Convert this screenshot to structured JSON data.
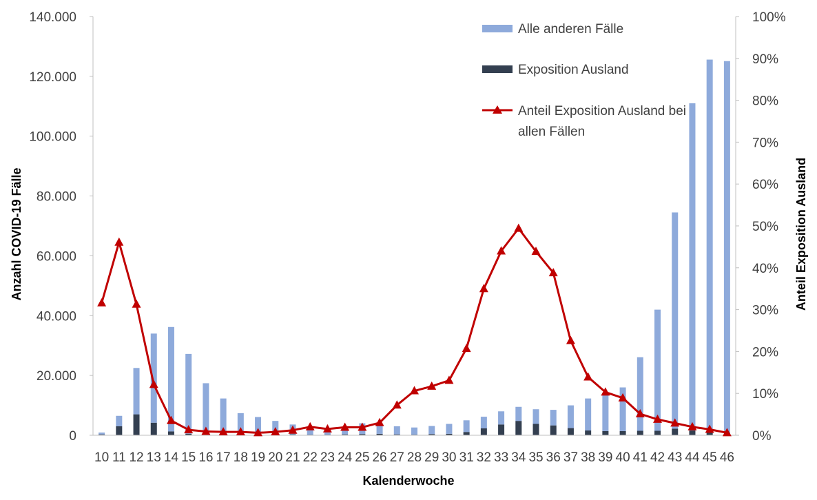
{
  "chart_data": {
    "type": "bar",
    "categories": [
      "10",
      "11",
      "12",
      "13",
      "14",
      "15",
      "16",
      "17",
      "18",
      "19",
      "20",
      "21",
      "22",
      "23",
      "24",
      "25",
      "26",
      "27",
      "28",
      "29",
      "30",
      "31",
      "32",
      "33",
      "34",
      "35",
      "36",
      "37",
      "38",
      "39",
      "40",
      "41",
      "42",
      "43",
      "44",
      "45",
      "46"
    ],
    "series": [
      {
        "name": "Alle anderen Fälle",
        "type": "bar-stacked",
        "axis": "left",
        "values": [
          600,
          3500,
          15500,
          29800,
          34900,
          26700,
          17200,
          12200,
          7300,
          5800,
          4600,
          3300,
          2400,
          2000,
          2400,
          3600,
          2800,
          2700,
          2400,
          2700,
          3300,
          3900,
          3900,
          4400,
          4700,
          4900,
          5200,
          7600,
          10700,
          12200,
          14600,
          24600,
          40500,
          72300,
          109400,
          124200,
          124700
        ]
      },
      {
        "name": "Exposition Ausland",
        "type": "bar-stacked",
        "axis": "left",
        "values": [
          300,
          3000,
          7000,
          4200,
          1300,
          500,
          200,
          100,
          100,
          300,
          200,
          300,
          200,
          200,
          300,
          400,
          500,
          300,
          200,
          400,
          500,
          1100,
          2300,
          3600,
          4800,
          3800,
          3300,
          2400,
          1600,
          1400,
          1400,
          1500,
          1500,
          2200,
          1600,
          1400,
          400
        ]
      },
      {
        "name": "Anteil Exposition Ausland bei allen Fällen",
        "type": "line",
        "axis": "right",
        "values": [
          31.6,
          46.1,
          31.3,
          12.1,
          3.5,
          1.3,
          0.9,
          0.8,
          0.8,
          0.6,
          0.8,
          1.2,
          2.0,
          1.5,
          1.9,
          1.9,
          3.0,
          7.2,
          10.6,
          11.7,
          13.1,
          20.7,
          35.0,
          44.0,
          49.4,
          43.9,
          38.8,
          22.6,
          13.9,
          10.3,
          8.9,
          5.1,
          3.8,
          2.9,
          2.0,
          1.4,
          0.6
        ]
      }
    ],
    "xlabel": "Kalenderwoche",
    "ylabel": "Anzahl COVID-19 Fälle",
    "y2label": "Anteil Exposition Ausland",
    "ylim": [
      0,
      140000
    ],
    "y2lim": [
      0,
      100
    ],
    "y_ticks": [
      "0",
      "20.000",
      "40.000",
      "60.000",
      "80.000",
      "100.000",
      "120.000",
      "140.000"
    ],
    "y2_ticks": [
      "0%",
      "10%",
      "20%",
      "30%",
      "40%",
      "50%",
      "60%",
      "70%",
      "80%",
      "90%",
      "100%"
    ],
    "grid": false,
    "legend_position": "top-right",
    "legend": [
      {
        "label": "Alle anderen Fälle"
      },
      {
        "label": "Exposition Ausland"
      },
      {
        "label_lines": [
          "Anteil Exposition Ausland bei",
          "allen Fällen"
        ]
      }
    ],
    "colors": {
      "other_cases": "#8eaadb",
      "abroad": "#333f50",
      "share_line": "#c00000",
      "axis": "#bfbfbf",
      "tick_text": "#404040"
    }
  }
}
